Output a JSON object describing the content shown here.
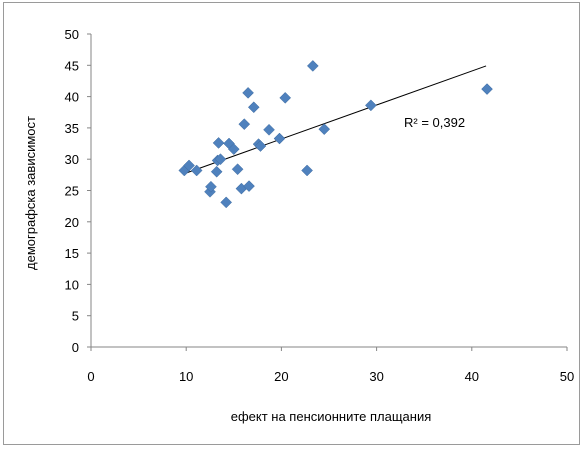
{
  "chart_data": {
    "type": "scatter",
    "xlabel": "ефект на пенсионните плащания",
    "ylabel": "демографска зависимост",
    "xlim": [
      0,
      50
    ],
    "ylim": [
      0,
      50
    ],
    "x_ticks": [
      "0",
      "10",
      "20",
      "30",
      "40",
      "50"
    ],
    "y_ticks": [
      "0",
      "5",
      "10",
      "15",
      "20",
      "25",
      "30",
      "35",
      "40",
      "45",
      "50"
    ],
    "grid": false,
    "marker_color": "#4f81bd",
    "trendline_color": "#000000",
    "annotation": "R² = 0,392",
    "trendline": {
      "x": [
        10,
        41.5
      ],
      "y": [
        27.8,
        44.9
      ]
    },
    "points": [
      [
        9.8,
        28.2
      ],
      [
        10.3,
        29.0
      ],
      [
        11.1,
        28.2
      ],
      [
        12.5,
        24.8
      ],
      [
        12.6,
        25.6
      ],
      [
        13.2,
        28.0
      ],
      [
        13.3,
        29.8
      ],
      [
        13.4,
        32.6
      ],
      [
        13.6,
        30.0
      ],
      [
        14.2,
        23.1
      ],
      [
        14.5,
        32.5
      ],
      [
        15.0,
        31.6
      ],
      [
        15.4,
        28.4
      ],
      [
        15.8,
        25.3
      ],
      [
        16.1,
        35.6
      ],
      [
        16.5,
        40.6
      ],
      [
        16.6,
        25.7
      ],
      [
        17.1,
        38.3
      ],
      [
        17.6,
        32.4
      ],
      [
        17.8,
        32.1
      ],
      [
        18.7,
        34.7
      ],
      [
        19.8,
        33.3
      ],
      [
        20.4,
        39.8
      ],
      [
        22.7,
        28.2
      ],
      [
        23.3,
        44.9
      ],
      [
        24.5,
        34.8
      ],
      [
        29.4,
        38.6
      ],
      [
        41.6,
        41.2
      ]
    ]
  }
}
